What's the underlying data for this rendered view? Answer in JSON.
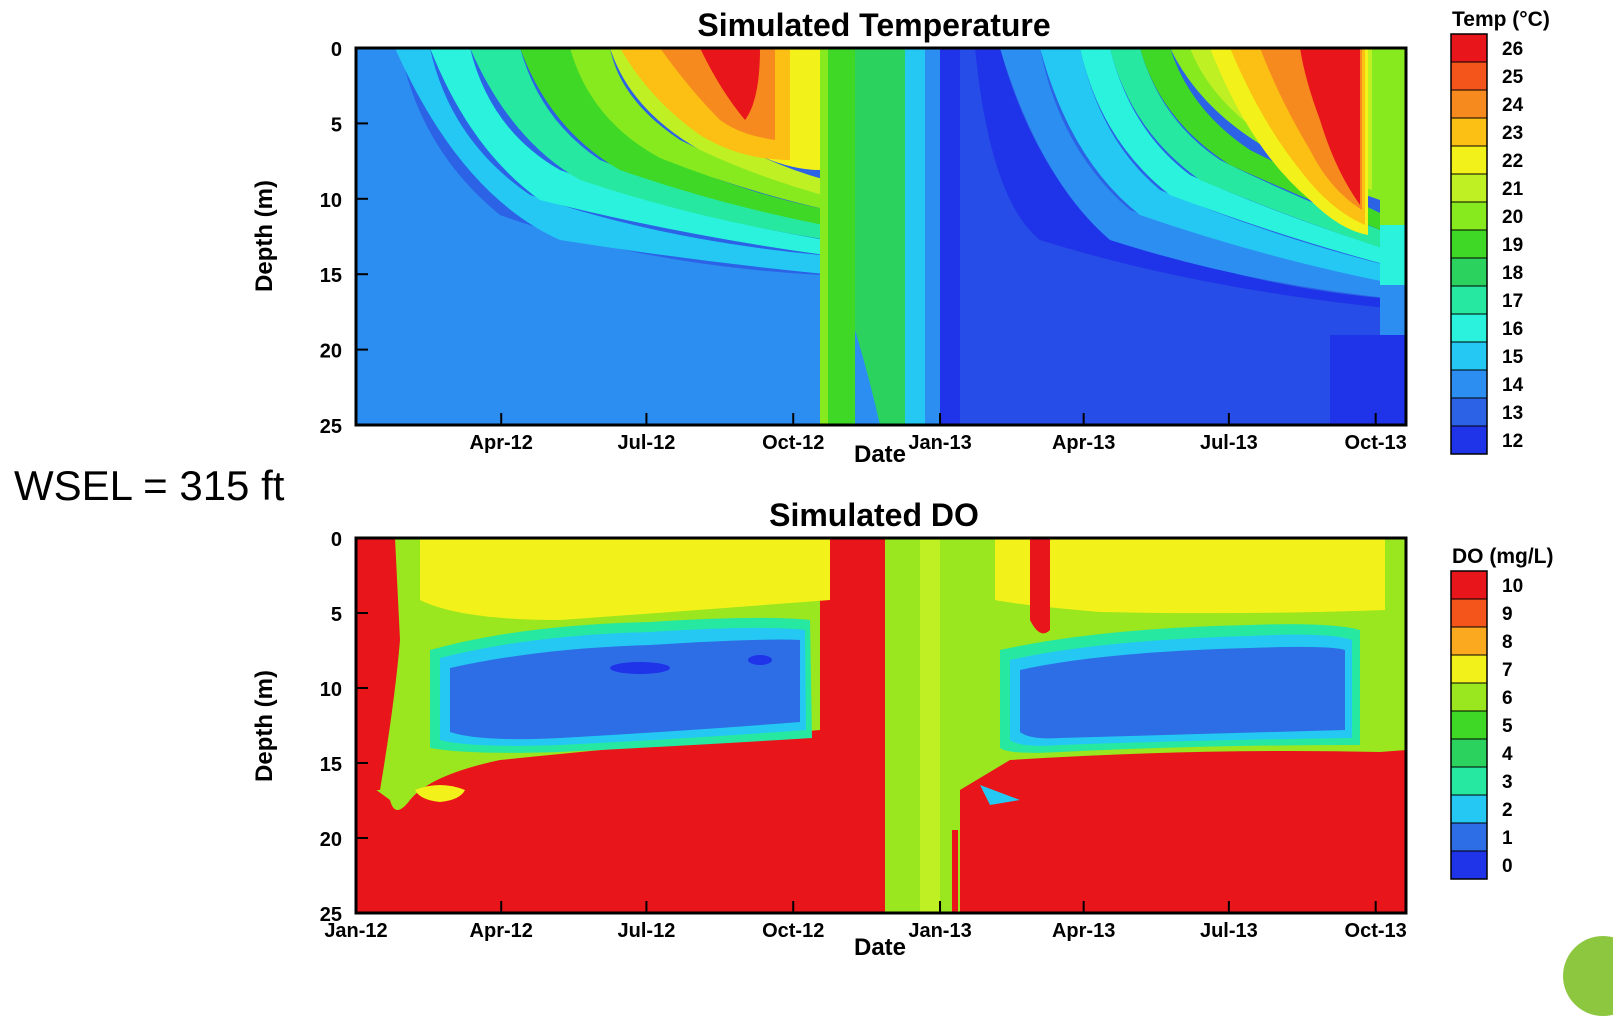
{
  "annotation": "WSEL = 315 ft",
  "chart_data": [
    {
      "type": "heatmap",
      "title": "Simulated Temperature",
      "xlabel": "Date",
      "ylabel": "Depth (m)",
      "y_ticks": [
        "0",
        "5",
        "10",
        "15",
        "20",
        "25"
      ],
      "x_ticks": [
        "Apr-12",
        "Jul-12",
        "Oct-12",
        "Jan-13",
        "Apr-13",
        "Jul-13",
        "Oct-13"
      ],
      "ylim": [
        25,
        0
      ],
      "xlim": [
        "2012-01-01",
        "2013-10-20"
      ],
      "colorbar": {
        "title": "Temp (°C)",
        "levels": [
          "26",
          "25",
          "24",
          "23",
          "22",
          "21",
          "20",
          "19",
          "18",
          "17",
          "16",
          "15",
          "14",
          "13",
          "12"
        ],
        "colors": [
          "#e8151b",
          "#f4551b",
          "#f68a1f",
          "#fbc013",
          "#f2f21a",
          "#bff024",
          "#86ea1f",
          "#3fd826",
          "#2bd35e",
          "#27e8a0",
          "#2af2dd",
          "#25c8f2",
          "#2d8ef2",
          "#2b62e6",
          "#1f33e8"
        ]
      },
      "approx_profile": [
        {
          "date": "2012-01-01",
          "temp_surface": 12,
          "temp_bottom": 12,
          "thermocline_depth": 25
        },
        {
          "date": "2012-04-01",
          "temp_surface": 16,
          "temp_bottom": 12,
          "thermocline_depth": 13
        },
        {
          "date": "2012-07-01",
          "temp_surface": 24,
          "temp_bottom": 12,
          "thermocline_depth": 15
        },
        {
          "date": "2012-08-15",
          "temp_surface": 26,
          "temp_bottom": 12,
          "thermocline_depth": 15.5
        },
        {
          "date": "2012-10-01",
          "temp_surface": 21,
          "temp_bottom": 12,
          "thermocline_depth": 16
        },
        {
          "date": "2012-11-15",
          "temp_surface": 19,
          "temp_bottom": 13,
          "thermocline_depth": 22
        },
        {
          "date": "2013-01-01",
          "temp_surface": 15,
          "temp_bottom": 15,
          "thermocline_depth": 25
        },
        {
          "date": "2013-01-15",
          "temp_surface": 12,
          "temp_bottom": 12,
          "thermocline_depth": 25
        },
        {
          "date": "2013-04-01",
          "temp_surface": 16,
          "temp_bottom": 12,
          "thermocline_depth": 14
        },
        {
          "date": "2013-07-01",
          "temp_surface": 24,
          "temp_bottom": 12,
          "thermocline_depth": 15.5
        },
        {
          "date": "2013-09-01",
          "temp_surface": 26,
          "temp_bottom": 12,
          "thermocline_depth": 16
        },
        {
          "date": "2013-10-20",
          "temp_surface": 21,
          "temp_bottom": 12,
          "thermocline_depth": 17
        }
      ]
    },
    {
      "type": "heatmap",
      "title": "Simulated DO",
      "xlabel": "Date",
      "ylabel": "Depth (m)",
      "y_ticks": [
        "0",
        "5",
        "10",
        "15",
        "20",
        "25"
      ],
      "x_ticks": [
        "Jan-12",
        "Apr-12",
        "Jul-12",
        "Oct-12",
        "Jan-13",
        "Apr-13",
        "Jul-13",
        "Oct-13"
      ],
      "ylim": [
        25,
        0
      ],
      "xlim": [
        "2012-01-01",
        "2013-10-20"
      ],
      "colorbar": {
        "title": "DO (mg/L)",
        "levels": [
          "10",
          "9",
          "8",
          "7",
          "6",
          "5",
          "4",
          "3",
          "2",
          "1",
          "0"
        ],
        "colors": [
          "#e8151b",
          "#f4551b",
          "#fbaa1f",
          "#f2f21a",
          "#9ae61f",
          "#3fd826",
          "#2bd35e",
          "#27e8a0",
          "#25c8f2",
          "#2d6ee6",
          "#1f33e8"
        ]
      },
      "approx_profile": [
        {
          "date": "2012-01-01",
          "do_surface": 10,
          "do_midlayer": 8,
          "do_bottom": 10,
          "hypoxic_top": 0,
          "hypoxic_bottom": 0
        },
        {
          "date": "2012-03-01",
          "do_surface": 7,
          "do_midlayer": 2,
          "do_bottom": 10,
          "hypoxic_top": 8,
          "hypoxic_bottom": 14
        },
        {
          "date": "2012-07-01",
          "do_surface": 7,
          "do_midlayer": 1,
          "do_bottom": 10,
          "hypoxic_top": 7.5,
          "hypoxic_bottom": 13.8
        },
        {
          "date": "2012-10-15",
          "do_surface": 6,
          "do_midlayer": 1,
          "do_bottom": 10,
          "hypoxic_top": 6.5,
          "hypoxic_bottom": 13
        },
        {
          "date": "2012-11-20",
          "do_surface": 10,
          "do_midlayer": 6,
          "do_bottom": 10,
          "hypoxic_top": 0,
          "hypoxic_bottom": 0
        },
        {
          "date": "2013-01-01",
          "do_surface": 7,
          "do_midlayer": 7,
          "do_bottom": 6,
          "hypoxic_top": 0,
          "hypoxic_bottom": 0
        },
        {
          "date": "2013-04-01",
          "do_surface": 7,
          "do_midlayer": 1,
          "do_bottom": 10,
          "hypoxic_top": 8,
          "hypoxic_bottom": 14
        },
        {
          "date": "2013-09-01",
          "do_surface": 7,
          "do_midlayer": 1,
          "do_bottom": 10,
          "hypoxic_top": 8,
          "hypoxic_bottom": 14
        },
        {
          "date": "2013-10-20",
          "do_surface": 6,
          "do_midlayer": 5,
          "do_bottom": 10,
          "hypoxic_top": 0,
          "hypoxic_bottom": 0
        }
      ]
    }
  ]
}
